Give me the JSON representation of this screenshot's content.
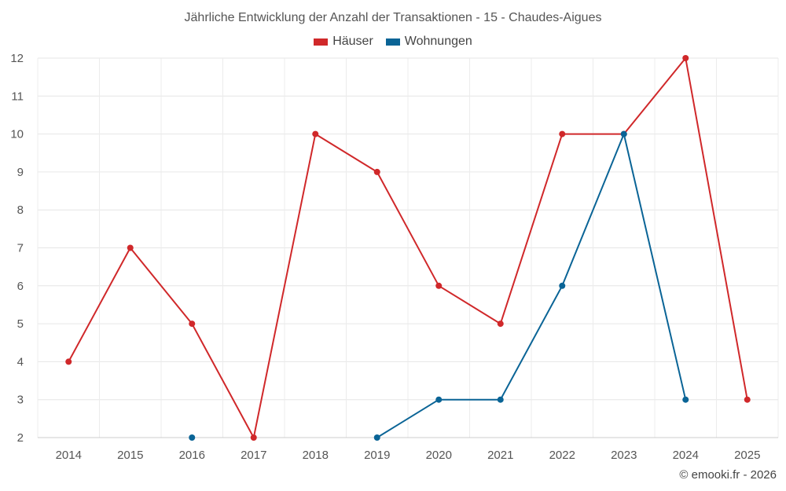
{
  "chart_data": {
    "type": "line",
    "title": "Jährliche Entwicklung der Anzahl der Transaktionen - 15 - Chaudes-Aigues",
    "x": [
      "2014",
      "2015",
      "2016",
      "2017",
      "2018",
      "2019",
      "2020",
      "2021",
      "2022",
      "2023",
      "2024",
      "2025"
    ],
    "ylim": [
      2,
      12
    ],
    "yticks": [
      2,
      3,
      4,
      5,
      6,
      7,
      8,
      9,
      10,
      11,
      12
    ],
    "grid": true,
    "legend_position": "top-center",
    "series": [
      {
        "name": "Häuser",
        "color": "#d0282a",
        "values": [
          4,
          7,
          5,
          2,
          10,
          9,
          6,
          5,
          10,
          10,
          12,
          3
        ]
      },
      {
        "name": "Wohnungen",
        "color": "#0a6496",
        "values": [
          null,
          null,
          2,
          null,
          null,
          2,
          3,
          3,
          6,
          10,
          3,
          null
        ]
      }
    ]
  },
  "footer": {
    "copyright": "© emooki.fr - 2026"
  }
}
